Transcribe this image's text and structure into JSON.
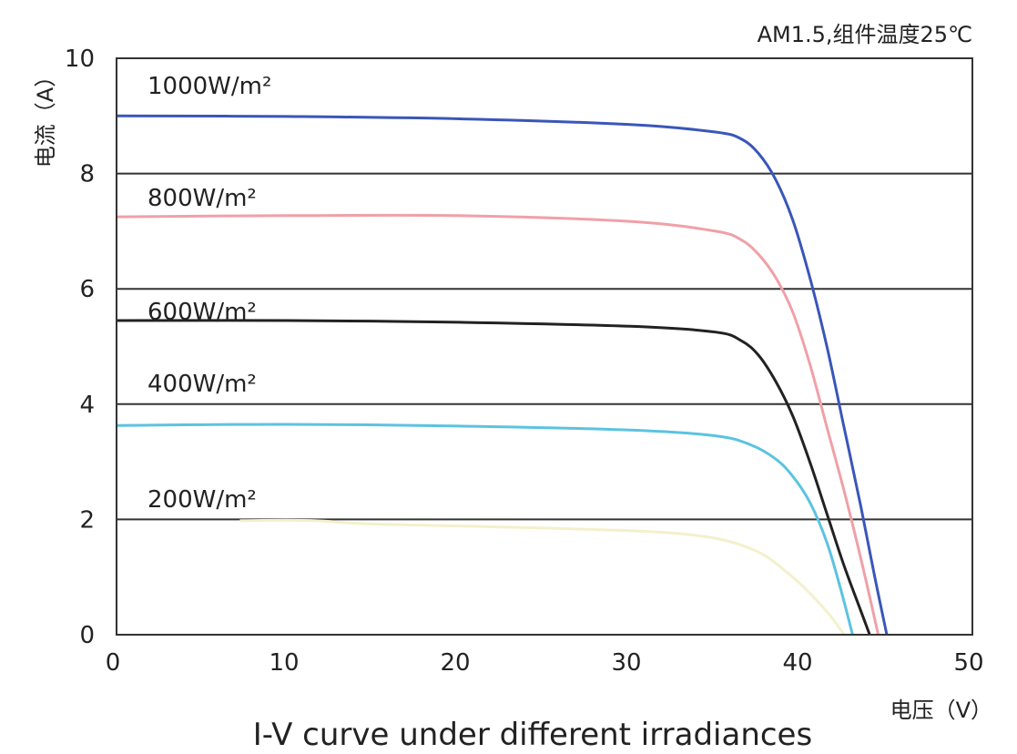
{
  "chart_data": {
    "type": "line",
    "title": "I-V curve under different irradiances",
    "annotation": "AM1.5,组件温度25℃",
    "xlabel": "电压（V）",
    "ylabel": "电流（A）",
    "xlim": [
      0,
      50
    ],
    "ylim": [
      0,
      10
    ],
    "xticks": [
      "0",
      "10",
      "20",
      "30",
      "40",
      "50"
    ],
    "yticks": [
      "0",
      "2",
      "4",
      "6",
      "8",
      "10"
    ],
    "grid": "horizontal",
    "series": [
      {
        "name": "1000W/m²",
        "color": "#3a56b8",
        "points": [
          [
            0,
            9.0
          ],
          [
            10,
            8.99
          ],
          [
            20,
            8.95
          ],
          [
            30,
            8.85
          ],
          [
            35,
            8.72
          ],
          [
            36.5,
            8.6
          ],
          [
            37.5,
            8.35
          ],
          [
            38.5,
            7.9
          ],
          [
            39.5,
            7.2
          ],
          [
            40.5,
            6.2
          ],
          [
            41.5,
            5.0
          ],
          [
            42.5,
            3.6
          ],
          [
            43.5,
            2.2
          ],
          [
            44.3,
            1.0
          ],
          [
            45.0,
            0
          ]
        ]
      },
      {
        "name": "800W/m²",
        "color": "#f0a0a8",
        "points": [
          [
            0,
            7.25
          ],
          [
            10,
            7.27
          ],
          [
            20,
            7.27
          ],
          [
            30,
            7.17
          ],
          [
            35,
            7.0
          ],
          [
            36.5,
            6.85
          ],
          [
            37.5,
            6.6
          ],
          [
            38.5,
            6.2
          ],
          [
            39.5,
            5.6
          ],
          [
            40.5,
            4.7
          ],
          [
            41.5,
            3.6
          ],
          [
            42.5,
            2.5
          ],
          [
            43.5,
            1.3
          ],
          [
            44.5,
            0
          ]
        ]
      },
      {
        "name": "600W/m²",
        "color": "#222222",
        "points": [
          [
            0,
            5.45
          ],
          [
            10,
            5.45
          ],
          [
            20,
            5.42
          ],
          [
            30,
            5.35
          ],
          [
            35,
            5.25
          ],
          [
            36.5,
            5.1
          ],
          [
            37.5,
            4.85
          ],
          [
            38.5,
            4.4
          ],
          [
            39.5,
            3.8
          ],
          [
            40.5,
            3.0
          ],
          [
            41.5,
            2.1
          ],
          [
            42.5,
            1.2
          ],
          [
            43.5,
            0.4
          ],
          [
            44.0,
            0
          ]
        ]
      },
      {
        "name": "400W/m²",
        "color": "#5bc3e0",
        "points": [
          [
            0,
            3.63
          ],
          [
            10,
            3.65
          ],
          [
            20,
            3.62
          ],
          [
            30,
            3.55
          ],
          [
            35,
            3.45
          ],
          [
            37,
            3.3
          ],
          [
            38.5,
            3.05
          ],
          [
            39.5,
            2.75
          ],
          [
            40.5,
            2.3
          ],
          [
            41.5,
            1.6
          ],
          [
            42.3,
            0.8
          ],
          [
            43.0,
            0
          ]
        ]
      },
      {
        "name": "200W/m²",
        "color": "#f4f0cc",
        "points": [
          [
            7.2,
            1.98
          ],
          [
            11.5,
            1.98
          ],
          [
            15,
            1.92
          ],
          [
            25,
            1.85
          ],
          [
            33,
            1.75
          ],
          [
            37,
            1.5
          ],
          [
            39.5,
            1.0
          ],
          [
            41.5,
            0.4
          ],
          [
            42.5,
            0
          ]
        ]
      }
    ]
  }
}
